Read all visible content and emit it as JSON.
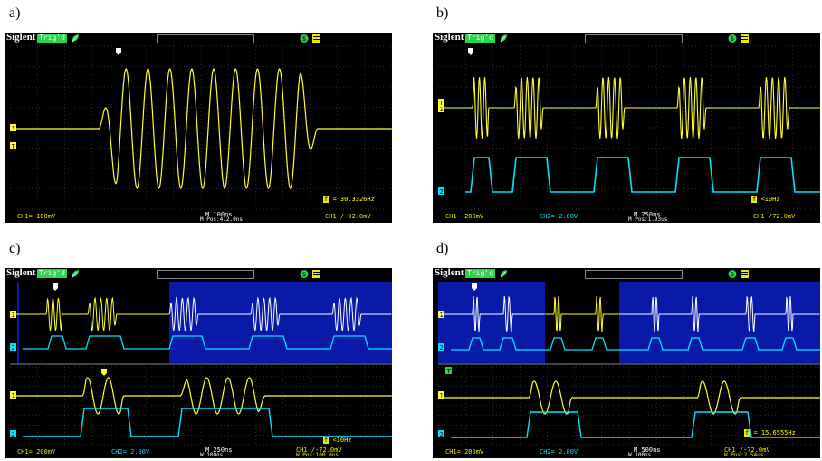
{
  "panels": [
    {
      "label": "a)",
      "brand": "Siglent",
      "trigger": "Trig'd",
      "freq": "= 30.3326Hz",
      "bottom": {
        "ch1": "CH1= 100mV",
        "ch2": "",
        "time": "M 100ns",
        "pos": "M Pos:412.0ns",
        "trig": "CH1 ∕-92.0mV"
      },
      "colors": {
        "ch1": "#ffff33",
        "ch2": "#00e5ff"
      }
    },
    {
      "label": "b)",
      "brand": "Siglent",
      "trigger": "Trig'd",
      "freq": "<10Hz",
      "bottom": {
        "ch1": "CH1~ 200mV",
        "ch2": "CH2= 2.00V",
        "time": "M 250ns",
        "pos": "M Pos:1.93us",
        "trig": "CH1 ∕72.0mV"
      },
      "colors": {
        "ch1": "#ffff33",
        "ch2": "#00e5ff"
      }
    },
    {
      "label": "c)",
      "brand": "Siglent",
      "trigger": "Trig'd",
      "freq": "<10Hz",
      "bottom": {
        "ch1": "CH1= 200mV",
        "ch2": "CH2= 2.00V",
        "time": "M 250ns",
        "pos": "W 100ns",
        "trig": "CH1 ∕-72.0mV",
        "trig2": "W Pos:100.0ns"
      },
      "colors": {
        "ch1": "#ffff33",
        "ch2": "#00e5ff",
        "zoom": "#0a1aa8"
      }
    },
    {
      "label": "d)",
      "brand": "Siglent",
      "trigger": "Trig'd",
      "freq": "= 15.6555Hz",
      "bottom": {
        "ch1": "CH1= 200mV",
        "ch2": "CH2= 2.00V",
        "time": "M 500ns",
        "pos": "W 100ns",
        "trig": "CH1 ∕-72.0mV",
        "trig2": "W Pos:2.54us"
      },
      "colors": {
        "ch1": "#ffff33",
        "ch2": "#00e5ff",
        "zoom": "#0a1aa8"
      }
    }
  ]
}
